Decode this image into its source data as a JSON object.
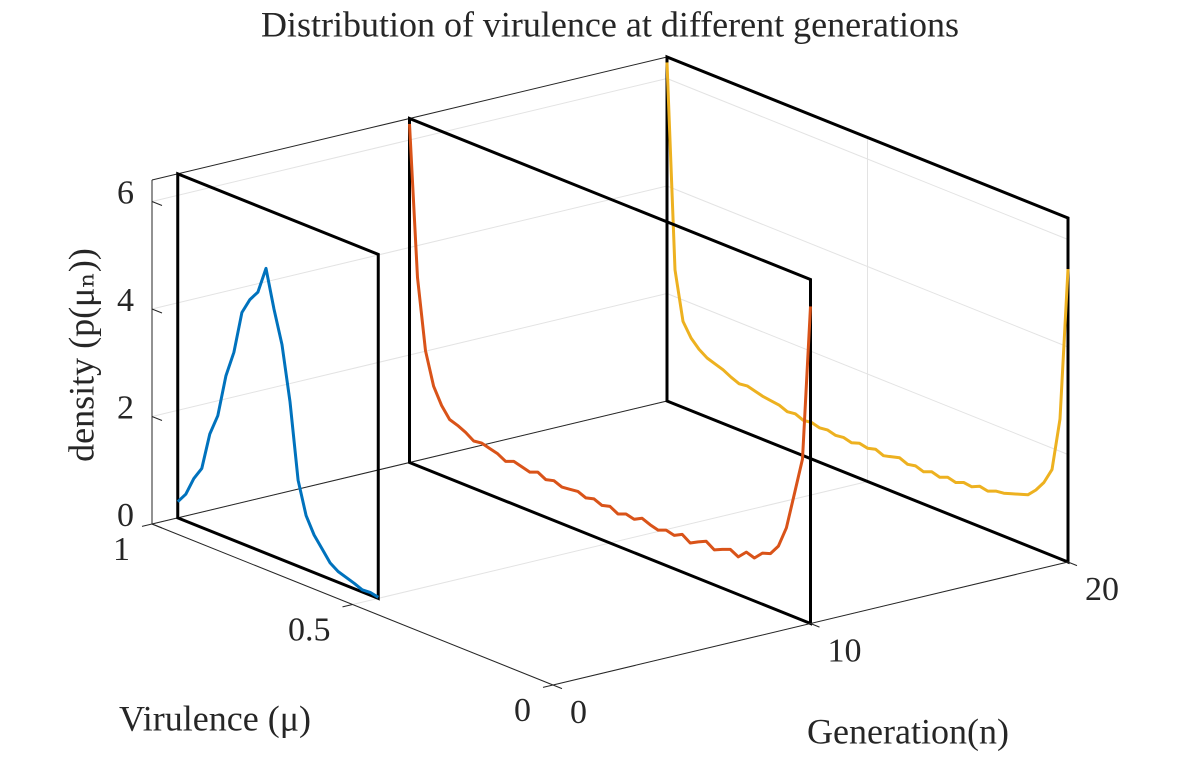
{
  "chart_data": {
    "type": "line3d",
    "title": "Distribution of virulence at different generations",
    "xlabel": "Generation(n)",
    "ylabel": "Virulence (μ)",
    "zlabel": "density (p(μₙ))",
    "xlim": [
      0,
      20
    ],
    "xticks": [
      0,
      10,
      20
    ],
    "ylim": [
      0,
      1
    ],
    "yticks": [
      0,
      0.5,
      1
    ],
    "zlim": [
      0,
      6.4
    ],
    "zticks": [
      0,
      2,
      4,
      6
    ],
    "grid": true,
    "series": [
      {
        "color": "#0072BD",
        "n": 1,
        "x": [
          0.5,
          0.52,
          0.54,
          0.56,
          0.58,
          0.6,
          0.62,
          0.64,
          0.66,
          0.68,
          0.7,
          0.72,
          0.74,
          0.76,
          0.78,
          0.8,
          0.82,
          0.84,
          0.86,
          0.88,
          0.9,
          0.92,
          0.94,
          0.96,
          0.98,
          1
        ],
        "values": [
          0.02,
          0.05,
          0.04,
          0.1,
          0.15,
          0.2,
          0.3,
          0.5,
          0.7,
          1.0,
          1.6,
          3.0,
          4.0,
          4.6,
          5.3,
          4.8,
          4.6,
          4.3,
          3.5,
          3.0,
          2.2,
          1.8,
          1.1,
          0.85,
          0.5,
          0.3
        ]
      },
      {
        "color": "#D95319",
        "n": 10,
        "x": [
          0,
          0.02,
          0.04,
          0.06,
          0.08,
          0.1,
          0.12,
          0.14,
          0.16,
          0.18,
          0.2,
          0.22,
          0.24,
          0.26,
          0.28,
          0.3,
          0.32,
          0.34,
          0.36,
          0.38,
          0.4,
          0.42,
          0.44,
          0.46,
          0.48,
          0.5,
          0.52,
          0.54,
          0.56,
          0.58,
          0.6,
          0.62,
          0.64,
          0.66,
          0.68,
          0.7,
          0.72,
          0.74,
          0.76,
          0.78,
          0.8,
          0.82,
          0.84,
          0.86,
          0.88,
          0.9,
          0.92,
          0.94,
          0.96,
          0.98,
          1
        ],
        "values": [
          5.9,
          3.0,
          2.3,
          1.6,
          1.2,
          1.0,
          0.95,
          0.8,
          0.85,
          0.7,
          0.78,
          0.72,
          0.65,
          0.75,
          0.68,
          0.6,
          0.7,
          0.62,
          0.66,
          0.6,
          0.64,
          0.7,
          0.62,
          0.66,
          0.6,
          0.68,
          0.64,
          0.7,
          0.66,
          0.72,
          0.7,
          0.68,
          0.74,
          0.7,
          0.78,
          0.72,
          0.76,
          0.8,
          0.74,
          0.82,
          0.86,
          0.9,
          0.88,
          0.98,
          1.05,
          1.1,
          1.3,
          1.6,
          2.2,
          3.5,
          6.3
        ]
      },
      {
        "color": "#EDB120",
        "n": 20,
        "x": [
          0,
          0.02,
          0.04,
          0.06,
          0.08,
          0.1,
          0.12,
          0.14,
          0.16,
          0.18,
          0.2,
          0.22,
          0.24,
          0.26,
          0.28,
          0.3,
          0.32,
          0.34,
          0.36,
          0.38,
          0.4,
          0.42,
          0.44,
          0.46,
          0.48,
          0.5,
          0.52,
          0.54,
          0.56,
          0.58,
          0.6,
          0.62,
          0.64,
          0.66,
          0.68,
          0.7,
          0.72,
          0.74,
          0.76,
          0.78,
          0.8,
          0.82,
          0.84,
          0.86,
          0.88,
          0.9,
          0.92,
          0.94,
          0.96,
          0.98,
          1
        ],
        "values": [
          5.45,
          2.6,
          1.6,
          1.3,
          1.1,
          0.95,
          0.9,
          0.85,
          0.8,
          0.78,
          0.72,
          0.75,
          0.68,
          0.7,
          0.64,
          0.68,
          0.62,
          0.66,
          0.6,
          0.65,
          0.62,
          0.68,
          0.64,
          0.6,
          0.66,
          0.62,
          0.65,
          0.6,
          0.64,
          0.62,
          0.66,
          0.64,
          0.68,
          0.66,
          0.72,
          0.7,
          0.76,
          0.78,
          0.8,
          0.84,
          0.88,
          0.86,
          0.92,
          1.0,
          1.05,
          1.1,
          1.2,
          1.35,
          1.6,
          2.5,
          6.3
        ]
      }
    ]
  }
}
